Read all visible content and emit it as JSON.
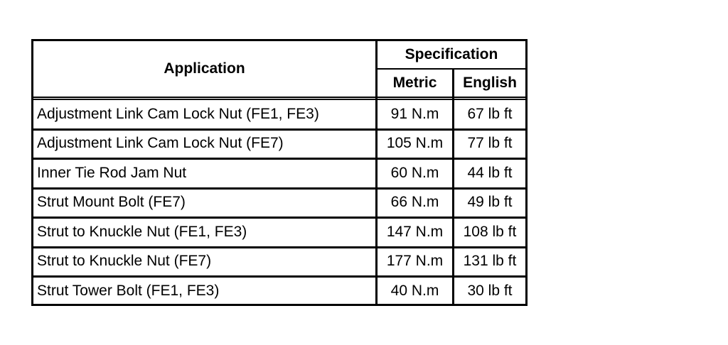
{
  "table": {
    "headers": {
      "application": "Application",
      "specification": "Specification",
      "metric": "Metric",
      "english": "English"
    },
    "rows": [
      {
        "application": "Adjustment Link Cam Lock Nut (FE1, FE3)",
        "metric": "91 N.m",
        "english": "67 lb ft"
      },
      {
        "application": "Adjustment Link Cam Lock Nut (FE7)",
        "metric": "105 N.m",
        "english": "77 lb ft"
      },
      {
        "application": "Inner Tie Rod Jam Nut",
        "metric": "60 N.m",
        "english": "44 lb ft"
      },
      {
        "application": "Strut Mount Bolt (FE7)",
        "metric": "66 N.m",
        "english": "49 lb ft"
      },
      {
        "application": "Strut to Knuckle Nut (FE1, FE3)",
        "metric": "147 N.m",
        "english": "108 lb ft"
      },
      {
        "application": "Strut to Knuckle Nut (FE7)",
        "metric": "177 N.m",
        "english": "131 lb ft"
      },
      {
        "application": "Strut Tower Bolt (FE1, FE3)",
        "metric": "40 N.m",
        "english": "30 lb ft"
      }
    ]
  }
}
